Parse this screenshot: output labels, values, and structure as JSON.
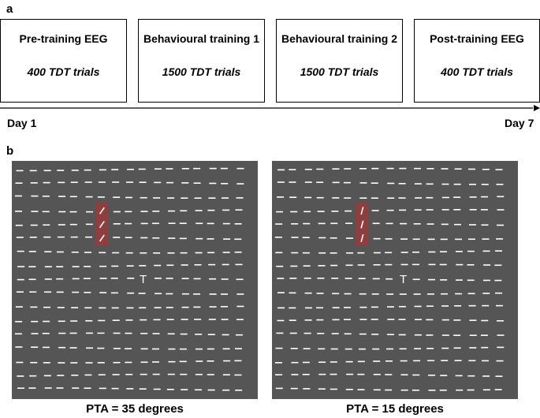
{
  "panels": {
    "a": {
      "label": "a"
    },
    "b": {
      "label": "b"
    }
  },
  "timeline": {
    "stages": [
      {
        "title": "Pre-training EEG",
        "trials": "400 TDT trials"
      },
      {
        "title": "Behavioural training 1",
        "trials": "1500 TDT trials"
      },
      {
        "title": "Behavioural training 2",
        "trials": "1500 TDT trials"
      },
      {
        "title": "Post-training EEG",
        "trials": "400 TDT trials"
      }
    ],
    "start_label": "Day 1",
    "end_label": "Day 7"
  },
  "stimuli": [
    {
      "caption": "PTA = 35 degrees",
      "target_angle_deg": 35,
      "fixation": "T"
    },
    {
      "caption": "PTA = 15 degrees",
      "target_angle_deg": 15,
      "fixation": "T"
    }
  ],
  "colors": {
    "background": "#ffffff",
    "stimulus_background": "#555555",
    "line_segment": "#ffffff",
    "target_highlight": "#9b3a3a"
  }
}
